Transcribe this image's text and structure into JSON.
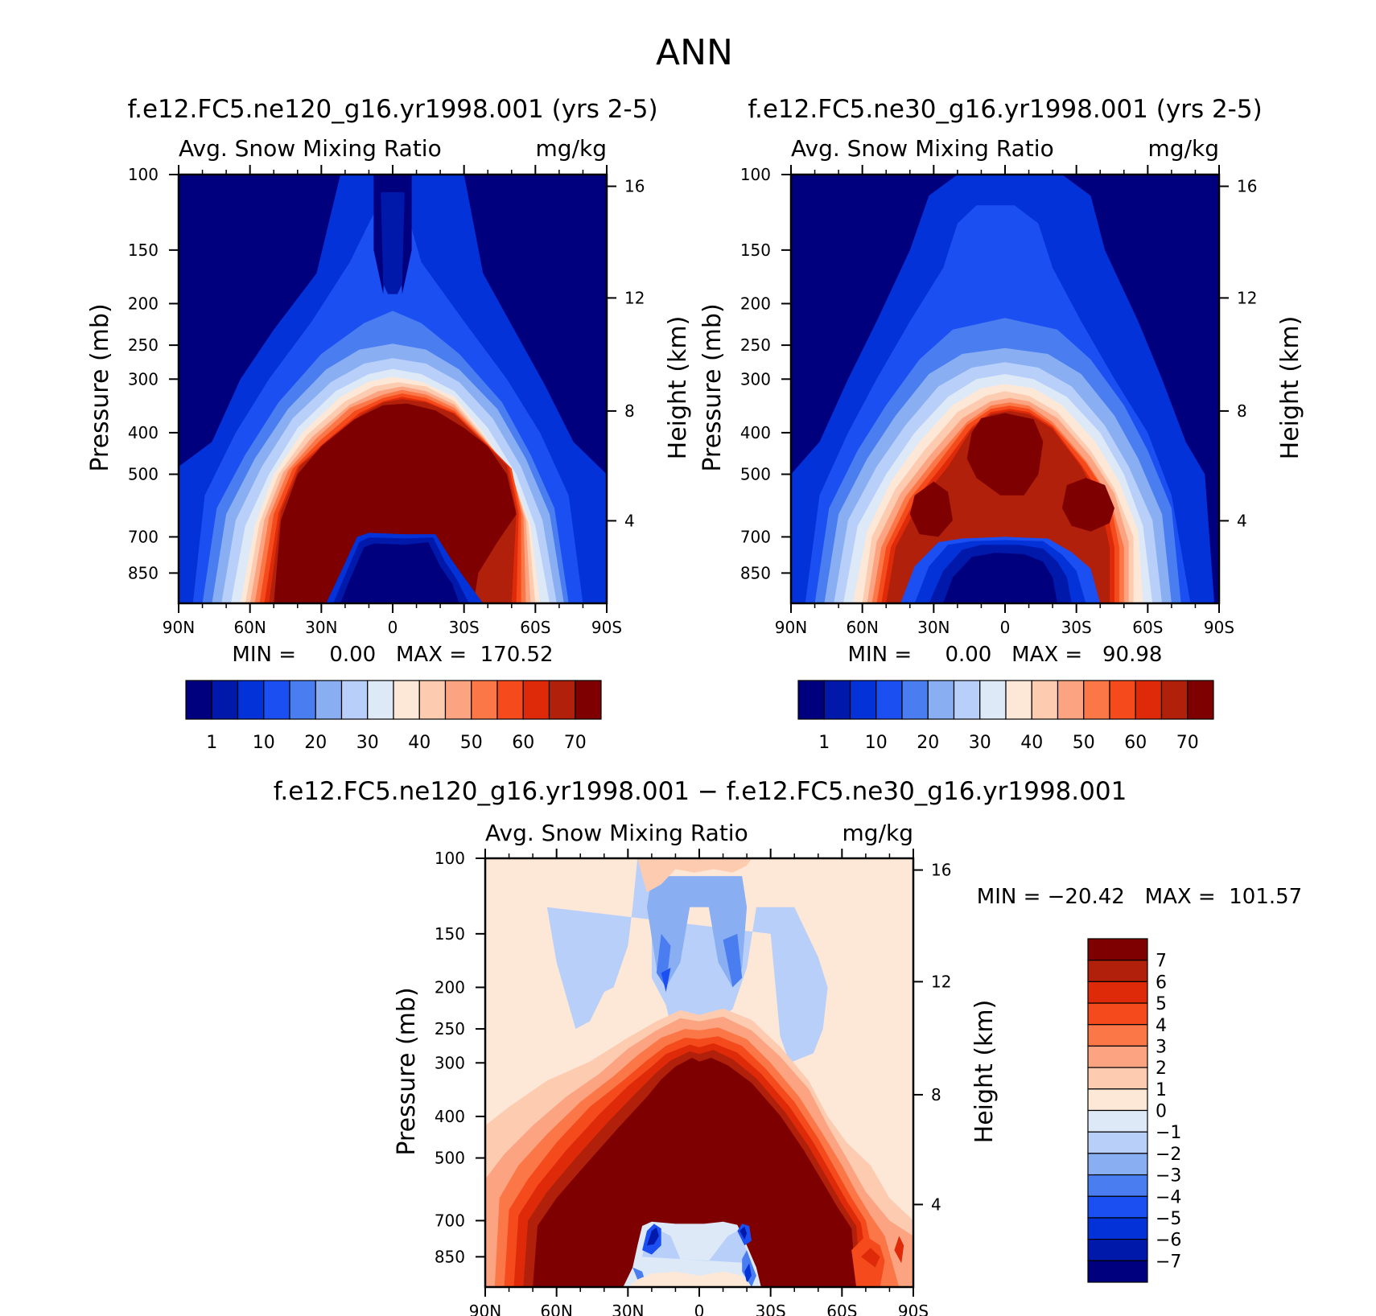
{
  "figure_title": "ANN",
  "chart_data": [
    {
      "type": "heatmap",
      "case": "f.e12.FC5.ne120_g16.yr1998.001 (yrs 2-5)",
      "left_label": "Avg. Snow Mixing Ratio",
      "right_label": "mg/kg",
      "ylabel": "Pressure (mb)",
      "y2label": "Height (km)",
      "xticks": [
        "90N",
        "60N",
        "30N",
        "0",
        "30S",
        "60S",
        "90S"
      ],
      "yticks": [
        "100",
        "150",
        "200",
        "250",
        "300",
        "400",
        "500",
        "700",
        "850"
      ],
      "y2ticks": [
        "16",
        "12",
        "8",
        "4"
      ],
      "stats": "MIN =     0.00   MAX =  170.52",
      "min": 0.0,
      "max": 170.52,
      "levels": [
        1,
        5,
        10,
        15,
        20,
        25,
        30,
        35,
        40,
        45,
        50,
        55,
        60,
        65,
        70
      ],
      "colorbar_labels": [
        "1",
        "10",
        "20",
        "30",
        "40",
        "50",
        "60",
        "70"
      ]
    },
    {
      "type": "heatmap",
      "case": "f.e12.FC5.ne30_g16.yr1998.001 (yrs 2-5)",
      "left_label": "Avg. Snow Mixing Ratio",
      "right_label": "mg/kg",
      "ylabel": "Pressure (mb)",
      "y2label": "Height (km)",
      "xticks": [
        "90N",
        "60N",
        "30N",
        "0",
        "30S",
        "60S",
        "90S"
      ],
      "yticks": [
        "100",
        "150",
        "200",
        "250",
        "300",
        "400",
        "500",
        "700",
        "850"
      ],
      "y2ticks": [
        "16",
        "12",
        "8",
        "4"
      ],
      "stats": "MIN =     0.00   MAX =   90.98",
      "min": 0.0,
      "max": 90.98,
      "levels": [
        1,
        5,
        10,
        15,
        20,
        25,
        30,
        35,
        40,
        45,
        50,
        55,
        60,
        65,
        70
      ],
      "colorbar_labels": [
        "1",
        "10",
        "20",
        "30",
        "40",
        "50",
        "60",
        "70"
      ]
    },
    {
      "type": "heatmap",
      "case": "f.e12.FC5.ne120_g16.yr1998.001 − f.e12.FC5.ne30_g16.yr1998.001",
      "left_label": "Avg. Snow Mixing Ratio",
      "right_label": "mg/kg",
      "ylabel": "Pressure (mb)",
      "y2label": "Height (km)",
      "xticks": [
        "90N",
        "60N",
        "30N",
        "0",
        "30S",
        "60S",
        "90S"
      ],
      "yticks": [
        "100",
        "150",
        "200",
        "250",
        "300",
        "400",
        "500",
        "700",
        "850"
      ],
      "y2ticks": [
        "16",
        "12",
        "8",
        "4"
      ],
      "stats": "MIN = −20.42   MAX =  101.57",
      "min": -20.42,
      "max": 101.57,
      "levels": [
        -7,
        -6,
        -5,
        -4,
        -3,
        -2,
        -1,
        0,
        1,
        2,
        3,
        4,
        5,
        6,
        7
      ],
      "colorbar_labels": [
        "7",
        "6",
        "5",
        "4",
        "3",
        "2",
        "1",
        "0",
        "−1",
        "−2",
        "−3",
        "−4",
        "−5",
        "−6",
        "−7"
      ]
    }
  ],
  "colors": [
    "#00007f",
    "#0019aa",
    "#0232d8",
    "#1b4ff2",
    "#4a7ef0",
    "#89aff2",
    "#b8cffa",
    "#dde9f7",
    "#fde8d8",
    "#fdcbb0",
    "#fca482",
    "#fb7748",
    "#f54a1c",
    "#df2a0a",
    "#b0200a",
    "#7f0000"
  ]
}
